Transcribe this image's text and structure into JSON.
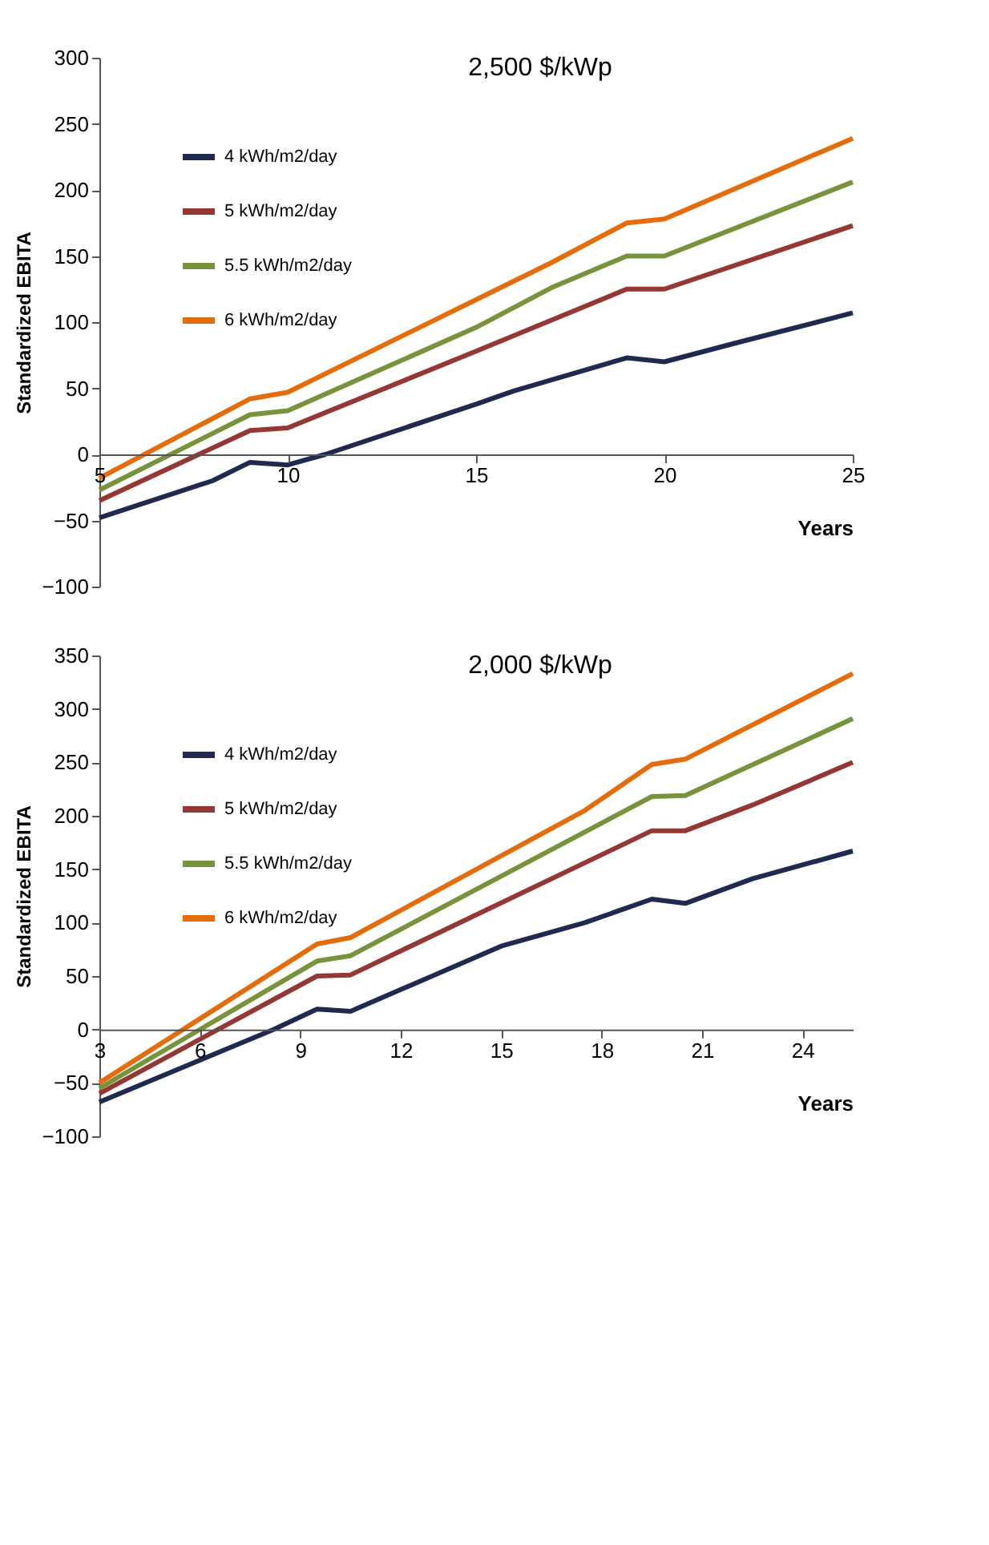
{
  "chart_data": [
    {
      "type": "line",
      "title": "2,500 $/kWp",
      "xlabel": "Years",
      "ylabel": "Standardized  EBITA",
      "legend": "top left",
      "grid": false,
      "xlim": [
        5,
        25
      ],
      "xticks": [
        5,
        10,
        15,
        20,
        25
      ],
      "ylim": [
        -100,
        300
      ],
      "yticks": [
        -100,
        -50,
        0,
        50,
        100,
        150,
        200,
        250,
        300
      ],
      "series": [
        {
          "name": "4 kWh/m2/day",
          "color": "#1f2a50",
          "x": [
            5,
            8,
            9,
            10,
            11,
            15,
            16,
            19,
            20,
            22,
            25
          ],
          "values": [
            -48,
            -20,
            -6,
            -8,
            0,
            38,
            48,
            73,
            70,
            85,
            107
          ]
        },
        {
          "name": "5 kWh/m2/day",
          "color": "#953735",
          "x": [
            5,
            9,
            10,
            15,
            19,
            20,
            25
          ],
          "values": [
            -35,
            18,
            20,
            78,
            125,
            125,
            173
          ]
        },
        {
          "name": "5.5 kWh/m2/day",
          "color": "#77933c",
          "x": [
            5,
            9,
            10,
            15,
            17,
            19,
            20,
            25
          ],
          "values": [
            -27,
            30,
            33,
            96,
            126,
            150,
            150,
            206
          ]
        },
        {
          "name": "6 kWh/m2/day",
          "color": "#e46c0a",
          "x": [
            5,
            9,
            10,
            15,
            17,
            19,
            20,
            25
          ],
          "values": [
            -18,
            42,
            47,
            117,
            145,
            175,
            178,
            239
          ]
        }
      ]
    },
    {
      "type": "line",
      "title": "2,000 $/kWp",
      "xlabel": "Years",
      "ylabel": "Standardized  EBITA",
      "legend": "top left",
      "grid": false,
      "xlim": [
        3,
        25.5
      ],
      "xticks": [
        3,
        6,
        9,
        12,
        15,
        18,
        21,
        24
      ],
      "ylim": [
        -100,
        350
      ],
      "yticks": [
        -100,
        -50,
        0,
        50,
        100,
        150,
        200,
        250,
        300,
        350
      ],
      "series": [
        {
          "name": "4 kWh/m2/day",
          "color": "#1f2a50",
          "x": [
            3,
            8.2,
            9.5,
            10.5,
            15,
            17.5,
            19.5,
            20.5,
            22.5,
            25.5
          ],
          "values": [
            -68,
            0,
            19,
            17,
            78,
            100,
            122,
            118,
            141,
            167
          ]
        },
        {
          "name": "5 kWh/m2/day",
          "color": "#953735",
          "x": [
            3,
            9.5,
            10.5,
            19.5,
            20.5,
            22.5,
            25.5
          ],
          "values": [
            -60,
            50,
            51,
            186,
            186,
            210,
            250
          ]
        },
        {
          "name": "5.5 kWh/m2/day",
          "color": "#77933c",
          "x": [
            3,
            9.5,
            10.5,
            19.5,
            20.5,
            23.5,
            25.5
          ],
          "values": [
            -55,
            64,
            69,
            218,
            219,
            262,
            291
          ]
        },
        {
          "name": "6 kWh/m2/day",
          "color": "#e46c0a",
          "x": [
            3,
            9.5,
            10.5,
            17.5,
            19.5,
            20.5,
            25.5
          ],
          "values": [
            -50,
            80,
            86,
            205,
            248,
            253,
            333
          ]
        }
      ]
    }
  ]
}
